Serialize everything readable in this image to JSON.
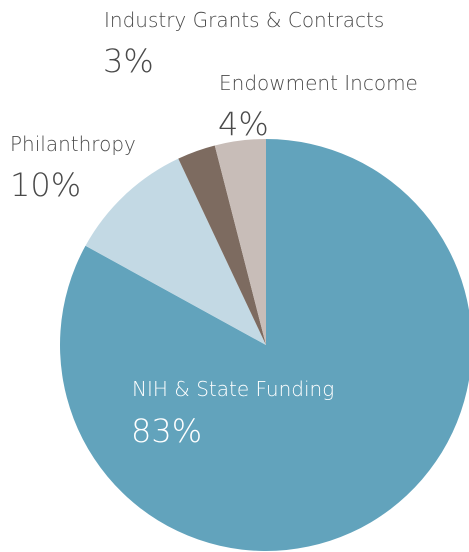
{
  "chart_data": {
    "type": "pie",
    "start_angle_deg": 0,
    "direction": "clockwise",
    "slices": [
      {
        "label": "NIH & State Funding",
        "percent_label": "83%",
        "value": 83,
        "color": "#62a3bc"
      },
      {
        "label": "Philanthropy",
        "percent_label": "10%",
        "value": 10,
        "color": "#c3d9e4"
      },
      {
        "label": "Industry Grants & Contracts",
        "percent_label": "3%",
        "value": 3,
        "color": "#7d6b60"
      },
      {
        "label": "Endowment Income",
        "percent_label": "4%",
        "value": 4,
        "color": "#c8bdb8"
      }
    ]
  }
}
